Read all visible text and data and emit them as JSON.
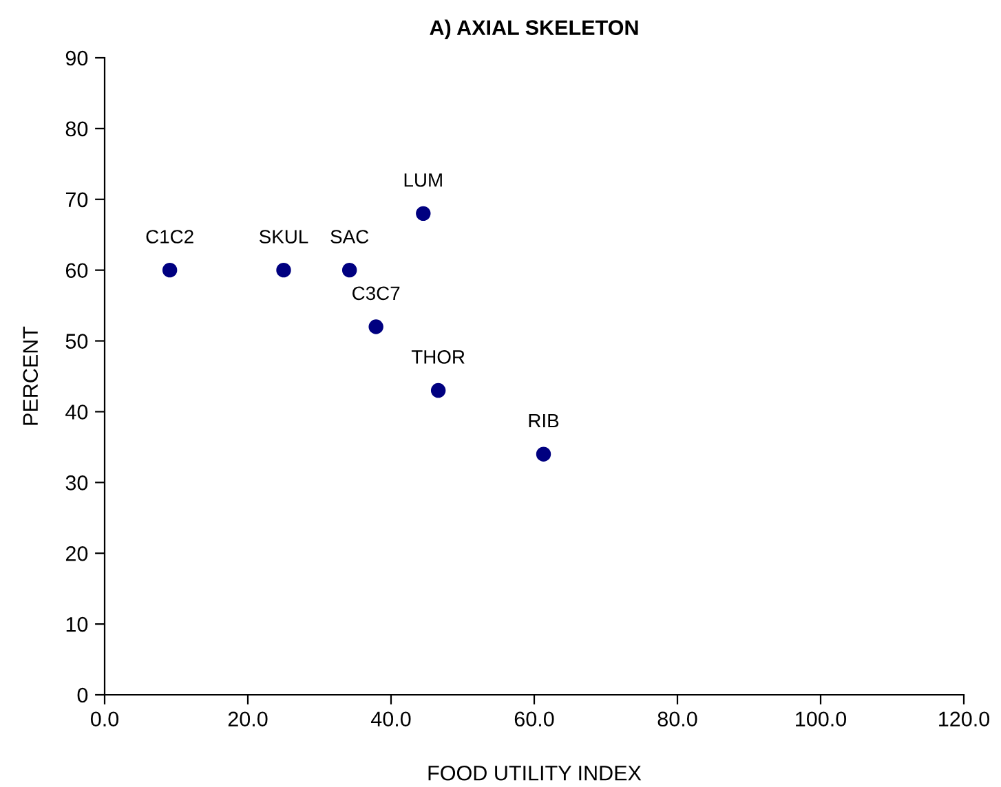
{
  "chart_data": {
    "type": "scatter",
    "title": "A) AXIAL SKELETON",
    "xlabel": "FOOD UTILITY INDEX",
    "ylabel": "PERCENT",
    "x": [
      9.1,
      25.0,
      34.2,
      37.9,
      44.5,
      46.6,
      61.3
    ],
    "values": [
      60,
      60,
      60,
      52,
      68,
      43,
      34
    ],
    "color": "#000080",
    "marker": "circle",
    "grid": false,
    "legend": false,
    "xlim": [
      0,
      120
    ],
    "xticks": [
      {
        "value": 0,
        "label": "0.0"
      },
      {
        "value": 20,
        "label": "20.0"
      },
      {
        "value": 40,
        "label": "40.0"
      },
      {
        "value": 60,
        "label": "60.0"
      },
      {
        "value": 80,
        "label": "80.0"
      },
      {
        "value": 100,
        "label": "100.0"
      },
      {
        "value": 120,
        "label": "120.0"
      }
    ],
    "ylim": [
      0,
      90
    ],
    "yticks": [
      0,
      10,
      20,
      30,
      40,
      50,
      60,
      70,
      80,
      90
    ],
    "annotations": [
      {
        "text": "C1C2",
        "x": 9.1,
        "y": 60
      },
      {
        "text": "SKUL",
        "x": 25.0,
        "y": 60
      },
      {
        "text": "SAC",
        "x": 34.2,
        "y": 60
      },
      {
        "text": "C3C7",
        "x": 37.9,
        "y": 52
      },
      {
        "text": "LUM",
        "x": 44.5,
        "y": 68
      },
      {
        "text": "THOR",
        "x": 46.6,
        "y": 43
      },
      {
        "text": "RIB",
        "x": 61.3,
        "y": 34
      }
    ]
  }
}
